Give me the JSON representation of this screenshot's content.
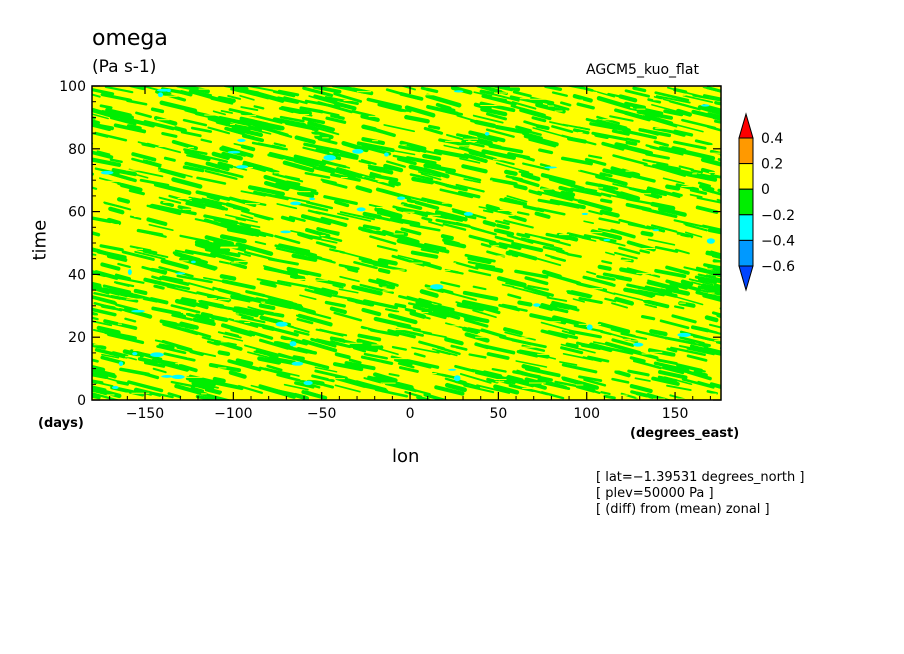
{
  "chart_data": {
    "type": "heatmap",
    "title": "omega",
    "units": "(Pa s-1)",
    "run_name": "AGCM5_kuo_flat",
    "xlabel": "lon",
    "ylabel": "time",
    "x_unit": "(degrees_east)",
    "y_unit": "(days)",
    "xlim": [
      -180,
      176
    ],
    "ylim": [
      0,
      100
    ],
    "x_ticks": [
      -150,
      -100,
      -50,
      0,
      50,
      100,
      150
    ],
    "y_ticks": [
      0,
      20,
      40,
      60,
      80,
      100
    ],
    "colorbar": {
      "levels": [
        0.4,
        0.2,
        0,
        -0.2,
        -0.4,
        -0.6
      ],
      "level_labels": [
        "0.4",
        "0.2",
        "0",
        "−0.2",
        "−0.4",
        "−0.6"
      ],
      "colors": [
        "#ff0000",
        "#ff9900",
        "#ffff00",
        "#00ee00",
        "#00ffff",
        "#0099ff",
        "#0044ff"
      ]
    },
    "info_lines": [
      "[ lat=−1.39531 degrees_north ]",
      "[ plev=50000 Pa ]",
      "[ (diff) from (mean) zonal ]"
    ]
  }
}
